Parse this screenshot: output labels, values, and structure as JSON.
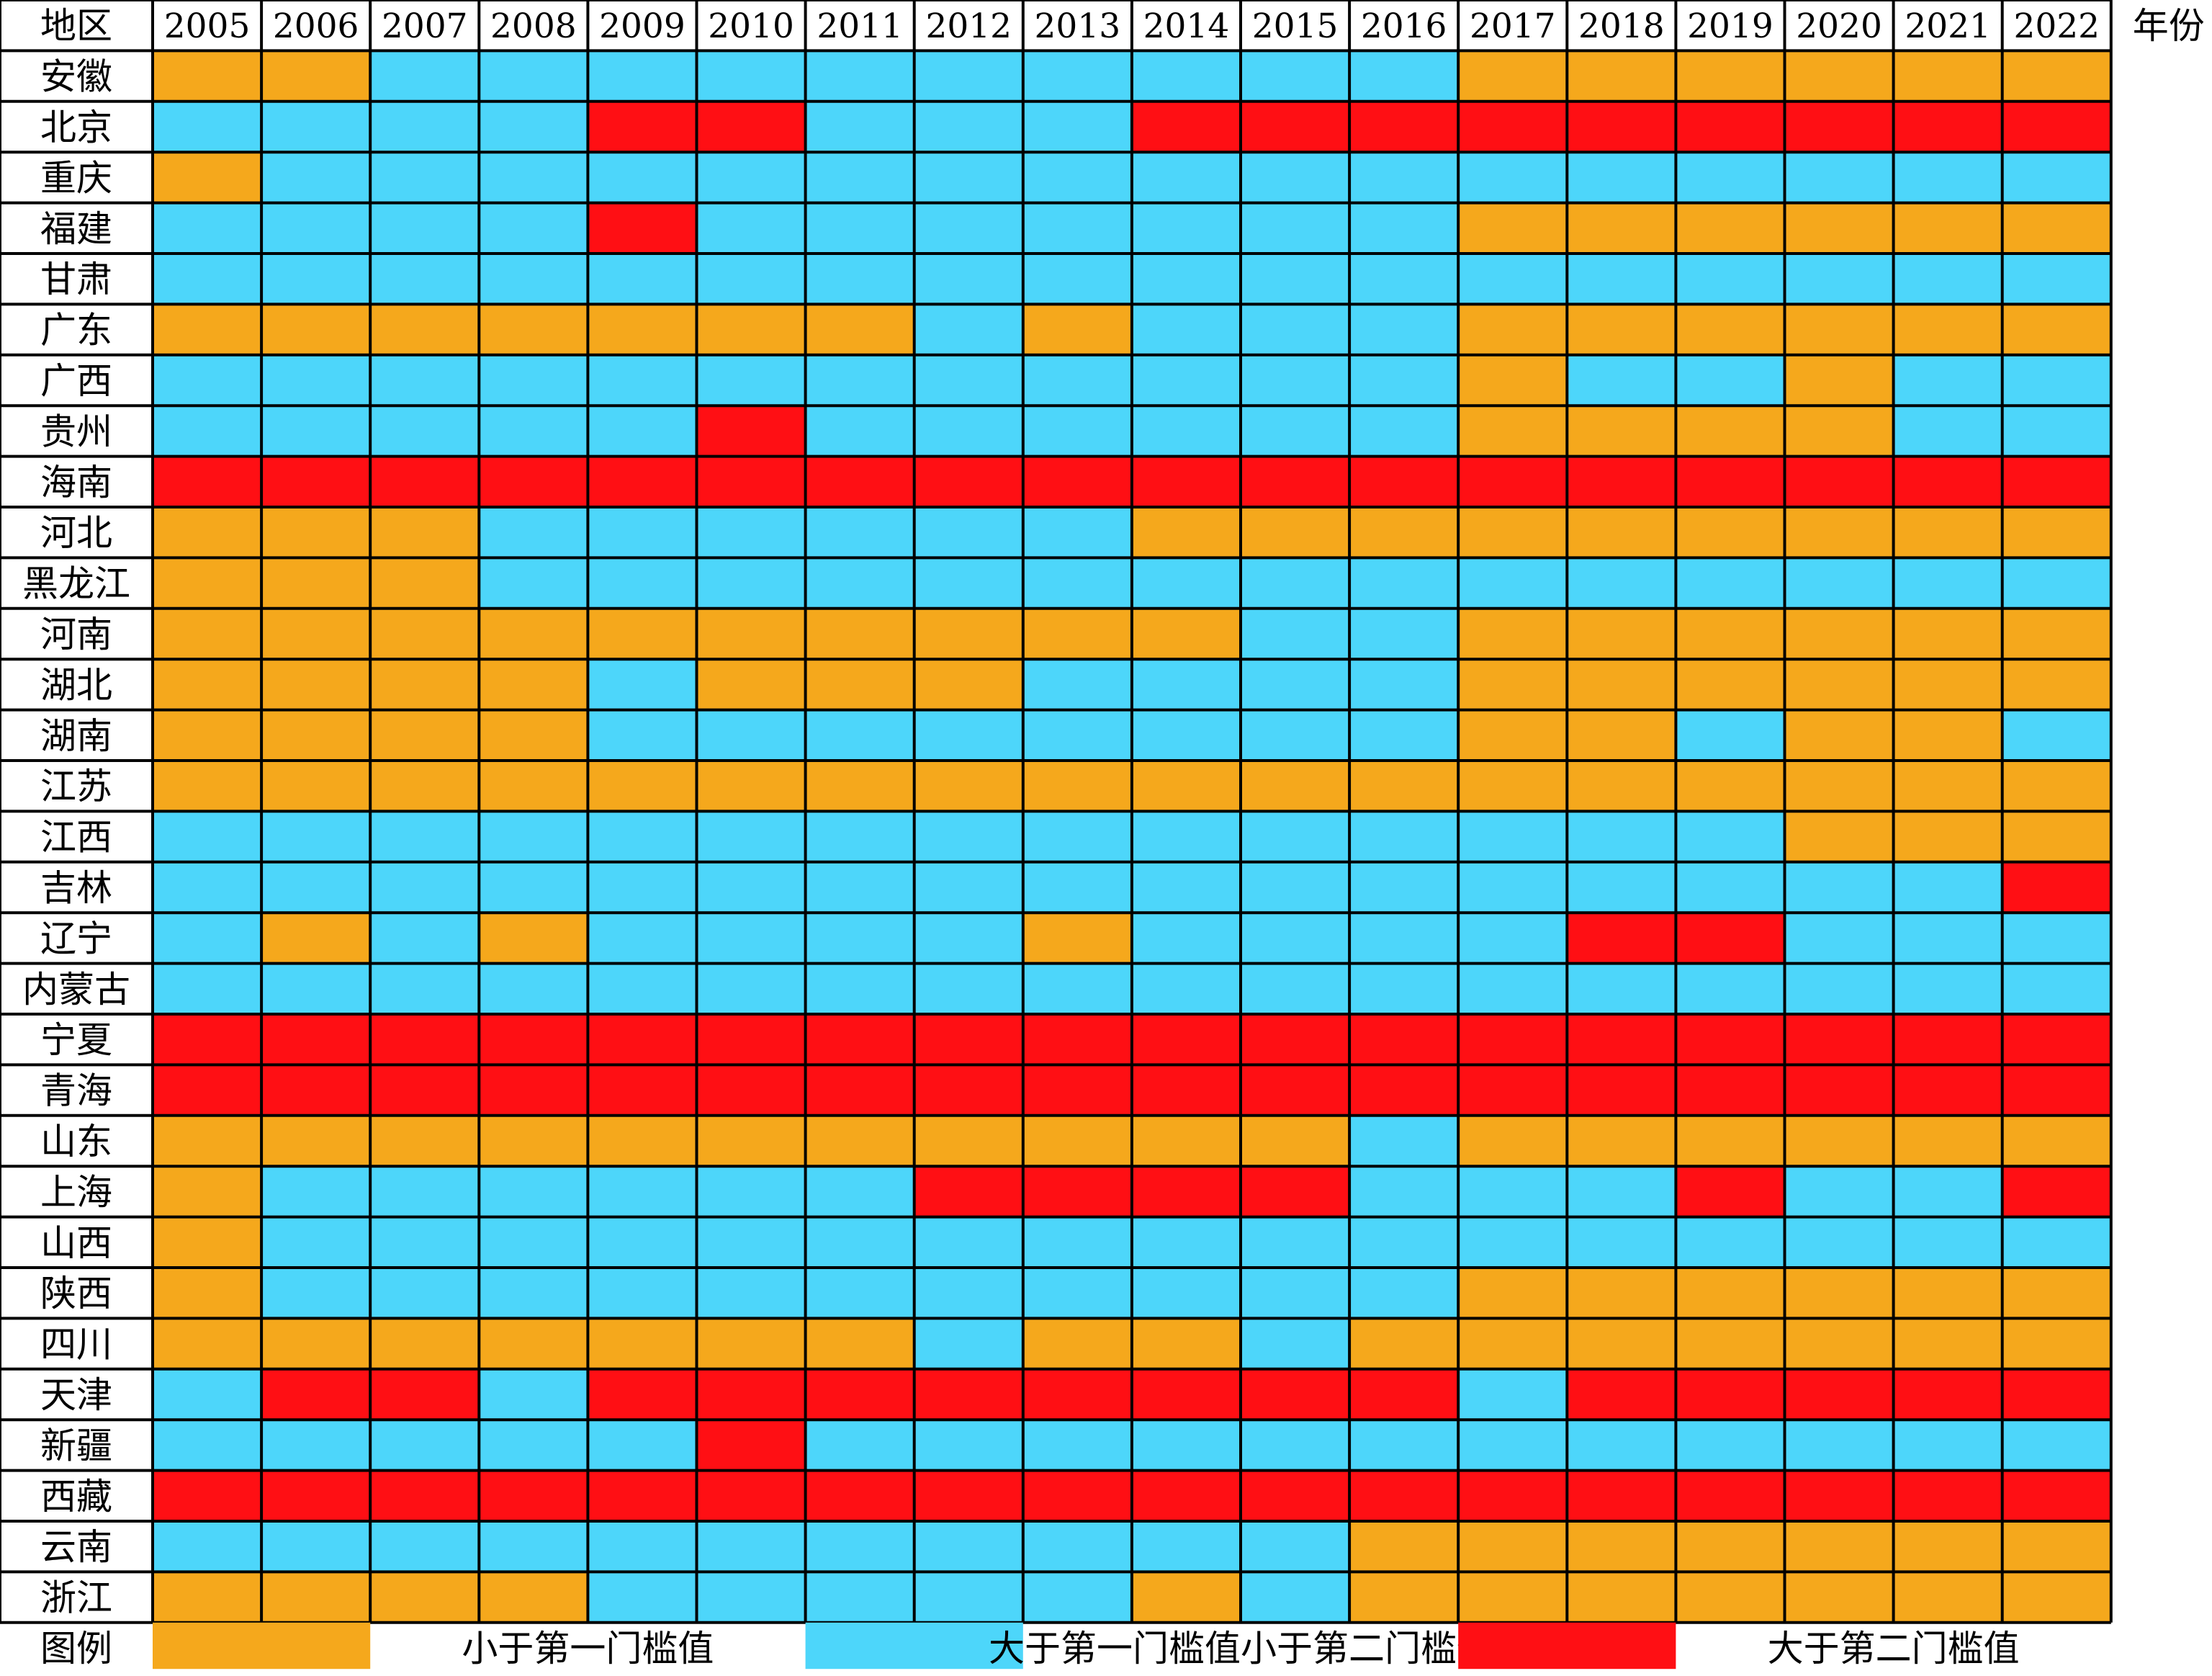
{
  "chart_data": {
    "type": "heatmap",
    "corner_label": "地区",
    "x_axis_label": "年份",
    "years": [
      "2005",
      "2006",
      "2007",
      "2008",
      "2009",
      "2010",
      "2011",
      "2012",
      "2013",
      "2014",
      "2015",
      "2016",
      "2017",
      "2018",
      "2019",
      "2020",
      "2021",
      "2022"
    ],
    "regions": [
      "安徽",
      "北京",
      "重庆",
      "福建",
      "甘肃",
      "广东",
      "广西",
      "贵州",
      "海南",
      "河北",
      "黑龙江",
      "河南",
      "湖北",
      "湖南",
      "江苏",
      "江西",
      "吉林",
      "辽宁",
      "内蒙古",
      "宁夏",
      "青海",
      "山东",
      "上海",
      "山西",
      "陕西",
      "四川",
      "天津",
      "新疆",
      "西藏",
      "云南",
      "浙江"
    ],
    "categories": [
      {
        "code": 1,
        "label": "小于第一门槛值",
        "color": "#F5A81C"
      },
      {
        "code": 2,
        "label": "大于第一门槛值小于第二门槛值",
        "color": "#4DD6FA"
      },
      {
        "code": 3,
        "label": "大于第二门槛值",
        "color": "#FF0F14"
      }
    ],
    "legend_title": "图例",
    "values": [
      [
        1,
        1,
        2,
        2,
        2,
        2,
        2,
        2,
        2,
        2,
        2,
        2,
        1,
        1,
        1,
        1,
        1,
        1
      ],
      [
        2,
        2,
        2,
        2,
        3,
        3,
        2,
        2,
        2,
        3,
        3,
        3,
        3,
        3,
        3,
        3,
        3,
        3
      ],
      [
        1,
        2,
        2,
        2,
        2,
        2,
        2,
        2,
        2,
        2,
        2,
        2,
        2,
        2,
        2,
        2,
        2,
        2
      ],
      [
        2,
        2,
        2,
        2,
        3,
        2,
        2,
        2,
        2,
        2,
        2,
        2,
        1,
        1,
        1,
        1,
        1,
        1
      ],
      [
        2,
        2,
        2,
        2,
        2,
        2,
        2,
        2,
        2,
        2,
        2,
        2,
        2,
        2,
        2,
        2,
        2,
        2
      ],
      [
        1,
        1,
        1,
        1,
        1,
        1,
        1,
        2,
        1,
        2,
        2,
        2,
        1,
        1,
        1,
        1,
        1,
        1
      ],
      [
        2,
        2,
        2,
        2,
        2,
        2,
        2,
        2,
        2,
        2,
        2,
        2,
        1,
        2,
        2,
        1,
        2,
        2
      ],
      [
        2,
        2,
        2,
        2,
        2,
        3,
        2,
        2,
        2,
        2,
        2,
        2,
        1,
        1,
        1,
        1,
        2,
        2
      ],
      [
        3,
        3,
        3,
        3,
        3,
        3,
        3,
        3,
        3,
        3,
        3,
        3,
        3,
        3,
        3,
        3,
        3,
        3
      ],
      [
        1,
        1,
        1,
        2,
        2,
        2,
        2,
        2,
        2,
        1,
        1,
        1,
        1,
        1,
        1,
        1,
        1,
        1
      ],
      [
        1,
        1,
        1,
        2,
        2,
        2,
        2,
        2,
        2,
        2,
        2,
        2,
        2,
        2,
        2,
        2,
        2,
        2
      ],
      [
        1,
        1,
        1,
        1,
        1,
        1,
        1,
        1,
        1,
        1,
        2,
        2,
        1,
        1,
        1,
        1,
        1,
        1
      ],
      [
        1,
        1,
        1,
        1,
        2,
        1,
        1,
        1,
        2,
        2,
        2,
        2,
        1,
        1,
        1,
        1,
        1,
        1
      ],
      [
        1,
        1,
        1,
        1,
        2,
        2,
        2,
        2,
        2,
        2,
        2,
        2,
        1,
        1,
        2,
        1,
        1,
        2
      ],
      [
        1,
        1,
        1,
        1,
        1,
        1,
        1,
        1,
        1,
        1,
        1,
        1,
        1,
        1,
        1,
        1,
        1,
        1
      ],
      [
        2,
        2,
        2,
        2,
        2,
        2,
        2,
        2,
        2,
        2,
        2,
        2,
        2,
        2,
        2,
        1,
        1,
        1
      ],
      [
        2,
        2,
        2,
        2,
        2,
        2,
        2,
        2,
        2,
        2,
        2,
        2,
        2,
        2,
        2,
        2,
        2,
        3
      ],
      [
        2,
        1,
        2,
        1,
        2,
        2,
        2,
        2,
        1,
        2,
        2,
        2,
        2,
        3,
        3,
        2,
        2,
        2
      ],
      [
        2,
        2,
        2,
        2,
        2,
        2,
        2,
        2,
        2,
        2,
        2,
        2,
        2,
        2,
        2,
        2,
        2,
        2
      ],
      [
        3,
        3,
        3,
        3,
        3,
        3,
        3,
        3,
        3,
        3,
        3,
        3,
        3,
        3,
        3,
        3,
        3,
        3
      ],
      [
        3,
        3,
        3,
        3,
        3,
        3,
        3,
        3,
        3,
        3,
        3,
        3,
        3,
        3,
        3,
        3,
        3,
        3
      ],
      [
        1,
        1,
        1,
        1,
        1,
        1,
        1,
        1,
        1,
        1,
        1,
        2,
        1,
        1,
        1,
        1,
        1,
        1
      ],
      [
        1,
        2,
        2,
        2,
        2,
        2,
        2,
        3,
        3,
        3,
        3,
        2,
        2,
        2,
        3,
        2,
        2,
        3
      ],
      [
        1,
        2,
        2,
        2,
        2,
        2,
        2,
        2,
        2,
        2,
        2,
        2,
        2,
        2,
        2,
        2,
        2,
        2
      ],
      [
        1,
        2,
        2,
        2,
        2,
        2,
        2,
        2,
        2,
        2,
        2,
        2,
        1,
        1,
        1,
        1,
        1,
        1
      ],
      [
        1,
        1,
        1,
        1,
        1,
        1,
        1,
        2,
        1,
        1,
        2,
        1,
        1,
        1,
        1,
        1,
        1,
        1
      ],
      [
        2,
        3,
        3,
        2,
        3,
        3,
        3,
        3,
        3,
        3,
        3,
        3,
        2,
        3,
        3,
        3,
        3,
        3
      ],
      [
        2,
        2,
        2,
        2,
        2,
        3,
        2,
        2,
        2,
        2,
        2,
        2,
        2,
        2,
        2,
        2,
        2,
        2
      ],
      [
        3,
        3,
        3,
        3,
        3,
        3,
        3,
        3,
        3,
        3,
        3,
        3,
        3,
        3,
        3,
        3,
        3,
        3
      ],
      [
        2,
        2,
        2,
        2,
        2,
        2,
        2,
        2,
        2,
        2,
        2,
        1,
        1,
        1,
        1,
        1,
        1,
        1
      ],
      [
        1,
        1,
        1,
        1,
        2,
        2,
        2,
        2,
        2,
        1,
        2,
        1,
        1,
        1,
        1,
        1,
        1,
        1
      ]
    ]
  }
}
